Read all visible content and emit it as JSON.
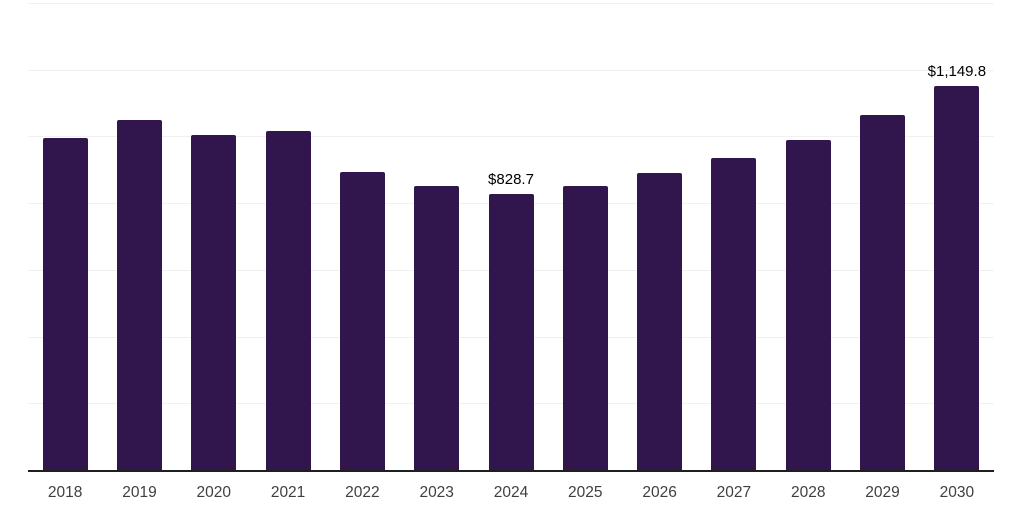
{
  "chart_data": {
    "type": "bar",
    "title": "",
    "xlabel": "",
    "ylabel": "",
    "categories": [
      "2018",
      "2019",
      "2020",
      "2021",
      "2022",
      "2023",
      "2024",
      "2025",
      "2026",
      "2027",
      "2028",
      "2029",
      "2030"
    ],
    "values": [
      995,
      1048,
      1004,
      1017,
      894,
      851,
      828.7,
      852,
      890,
      935,
      990,
      1065,
      1149.8
    ],
    "data_labels": [
      null,
      null,
      null,
      null,
      null,
      null,
      "$828.7",
      null,
      null,
      null,
      null,
      null,
      "$1,149.8"
    ],
    "ylim": [
      0,
      1400
    ],
    "gridline_step": 200,
    "grid": "horizontal",
    "legend_position": "none",
    "colors": {
      "bar": "#31154d",
      "gridline": "#f1eff2",
      "axis_line": "#1f1f1f",
      "value_label_text": "#000000",
      "tick_label_text": "#3f3f3f",
      "background": "#ffffff"
    }
  }
}
